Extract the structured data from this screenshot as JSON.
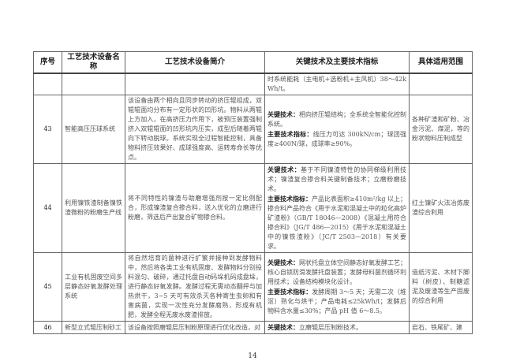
{
  "headers": [
    "序号",
    "工艺技术设备名称",
    "工艺技术设备简介",
    "关键技术及主要技术指标",
    "具体适用范围"
  ],
  "cont_row": {
    "tech": "时系统能耗（主电机+选粉机+主风机）38～42kWh/t。"
  },
  "rows": [
    {
      "no": "43",
      "name": "智能高压压球系统",
      "desc": "该设备由两个相向且同步转动的挤压辊组成，双辊辊面均分布有一定形状的凹形坑。物料从两辊上方加入，在高挤压力作用下，被预压装置强制挤入双辊辊面的凹形坑内压实，成型后随着两辊向下转动脱球。系统实现全过程智能控制，具备物料挤压效果好、成球强度高、运转寿命长等优点。",
      "key_label": "关键技术：",
      "key": "相向挤压辊结构；全系统全智能化控制系统。",
      "main_label": "主要技术指标：",
      "main": "线压力可达 300kN/cm；球团强度≥400N/球，成球率≥90%。",
      "scope": "各种矿渣和矿粉、冶金污泥、煤泥，等的粉状物料压制成型"
    },
    {
      "no": "44",
      "name": "利用镍铁渣制备镍铁渣微粉的粉磨生产线",
      "desc": "将不同特性的镍渣与助磨增强剂按一定比例配合，形成镍渣复合掺合料，送入优化的立磨进行粉磨，筛选后产出复合矿物掺合料。",
      "key_label": "关键技术：",
      "key": "基于不同镍渣特性的协同梯级利用技术；镍渣复合掺合料关键制备技术；立磨粉磨技术。",
      "main_label": "主要技术指标：",
      "main": "产品比表面积≥410m²/kg 以上；掺合料产品符合《用于水泥和混凝土中的粒化高炉矿渣粉》（GB/T 18046—2008）《混凝土用符合掺合料》（JG/T 486—2015）《用于水泥和混凝土中的镍铁渣粉》（JC/T 2503—2018）有关要求。",
      "scope": "红土镍矿火法冶炼废渣综合利用"
    },
    {
      "no": "45",
      "name": "工业有机固废空间多层静态好氧发酵处理系统",
      "desc": "将自然培育的菌种进行扩繁并接种到发酵物料中，然后将各类工业有机固废、发酵物料分别投料混匀、破碎，通过托盘自动码垛机码成盘垛，进行静态好氧发酵。发酵过程无需动态翻抨与加热烘干，3~5 天可有效杀灭各种寄生虫卵和有害病菌，实现一次性充分发酵腐熟，形成有机肥，发酵全程无废水废渣排放。",
      "key_label": "关键技术：",
      "key": "网状托盘立体空间静态好氧发酵工艺；核心自锁防滑发酵托盘装置；发酵母料菌剂循环利用技术；设备结构模块化设计。",
      "main_label": "主要技术指标：",
      "main": "发酵周期 3～5 天；无需二次（堆沤）熟化与烘干；产品电耗≤25kWh/t；发酵后物料含水量≤30%；产品 pH 值 6～8.5。",
      "scope": "造纸污泥、木材下脚料（树皮）、制糖滤泥及废渣等生产固废的综合利用"
    },
    {
      "no": "46",
      "name": "新型立式辊压制砂工",
      "desc": "该设备按照磨辊层压制粉原理进行优化改造，对",
      "key_label": "关键技术：",
      "key": "立磨辊层压制粉技术。",
      "main_label": "",
      "main": "",
      "scope": "岩石、铁尾矿、建"
    }
  ],
  "page_number": "14"
}
